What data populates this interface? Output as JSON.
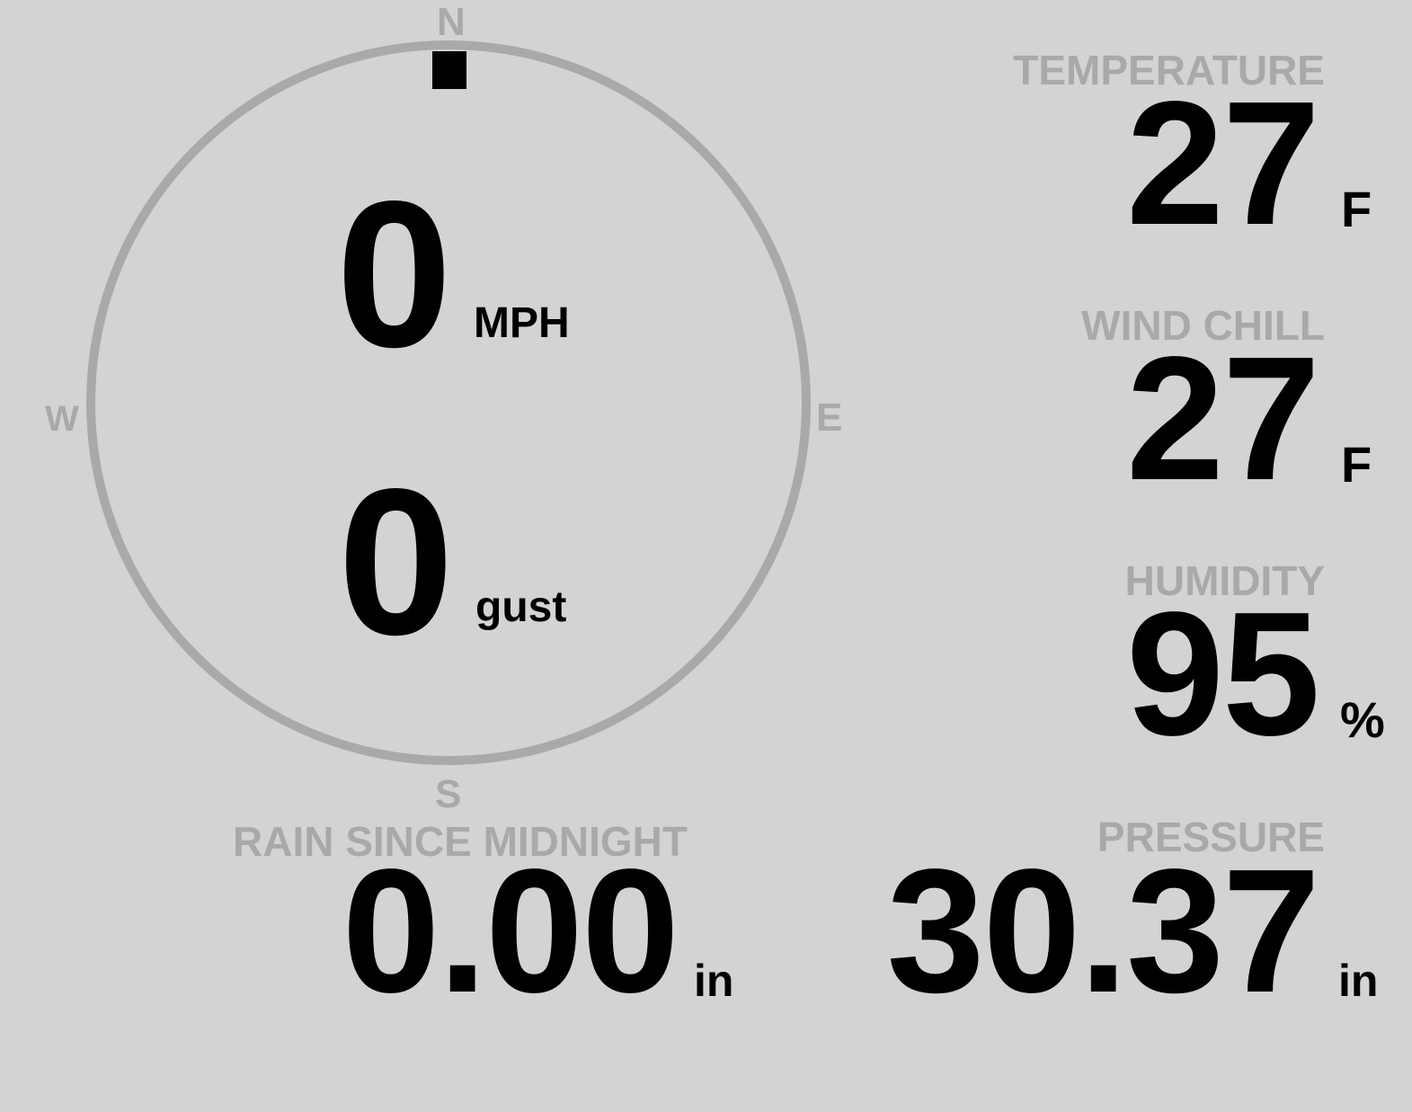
{
  "compass": {
    "north": "N",
    "south": "S",
    "east": "E",
    "west": "W",
    "direction_deg": 0,
    "colors": {
      "ring": "#a9a9a9",
      "pointer": "#000000"
    }
  },
  "wind": {
    "speed": "0",
    "speed_unit": "MPH",
    "gust": "0",
    "gust_unit": "gust"
  },
  "temperature": {
    "label": "TEMPERATURE",
    "value": "27",
    "unit": "F"
  },
  "wind_chill": {
    "label": "WIND CHILL",
    "value": "27",
    "unit": "F"
  },
  "humidity": {
    "label": "HUMIDITY",
    "value": "95",
    "unit": "%"
  },
  "rain": {
    "label": "RAIN SINCE MIDNIGHT",
    "value": "0.00",
    "unit": "in"
  },
  "pressure": {
    "label": "PRESSURE",
    "value": "30.37",
    "unit": "in"
  },
  "colors": {
    "background": "#d3d3d3",
    "label": "#a9a9a9",
    "value": "#000000"
  }
}
